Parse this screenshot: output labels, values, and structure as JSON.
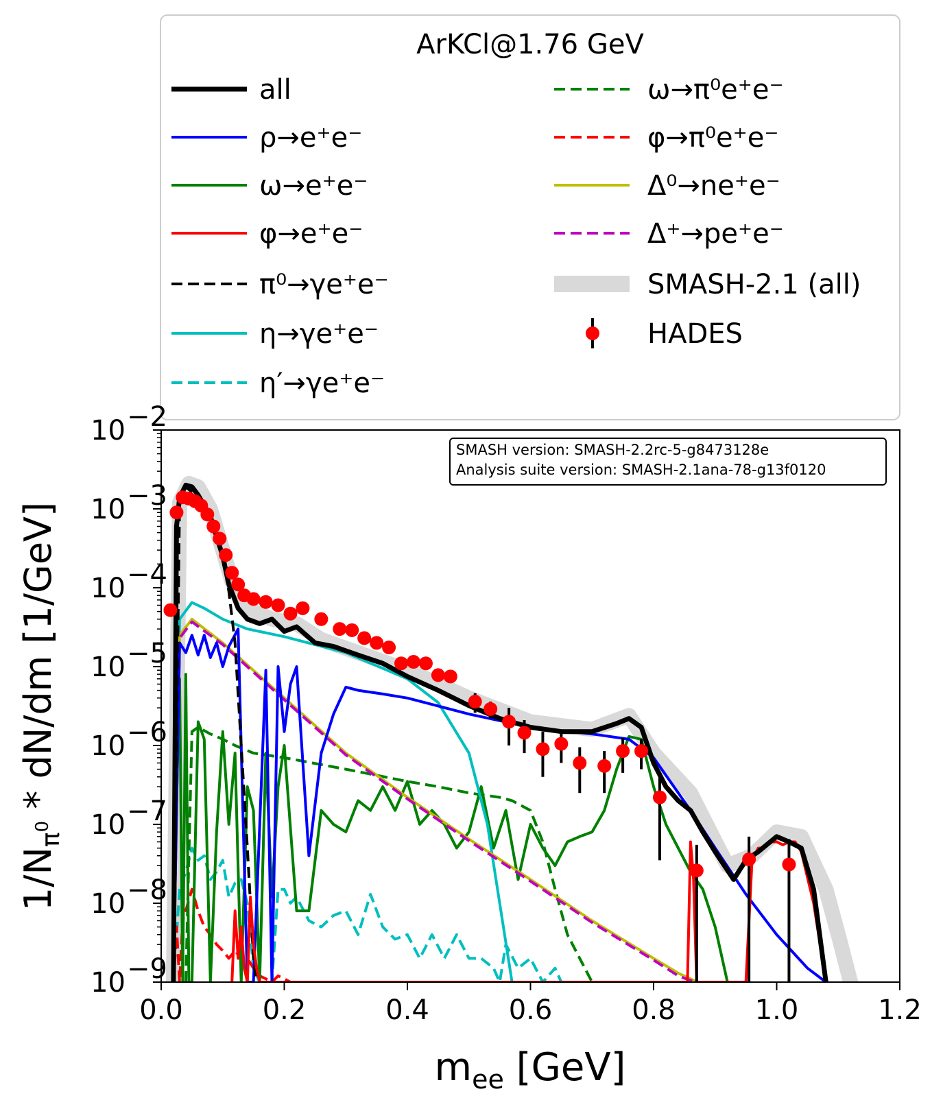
{
  "chart_data": {
    "type": "line",
    "title": "",
    "xlabel": "m_ee [GeV]",
    "ylabel": "1/N_π0 * dN/dm [1/GeV]",
    "xlim": [
      0.0,
      1.2
    ],
    "ylim": [
      1e-09,
      0.01
    ],
    "yscale": "log",
    "grid": false,
    "x_ticks": [
      "0.0",
      "0.2",
      "0.4",
      "0.6",
      "0.8",
      "1.0",
      "1.2"
    ],
    "y_ticks": [
      {
        "mant": "10",
        "exp": "−2"
      },
      {
        "mant": "10",
        "exp": "−3"
      },
      {
        "mant": "10",
        "exp": "−4"
      },
      {
        "mant": "10",
        "exp": "−5"
      },
      {
        "mant": "10",
        "exp": "−6"
      },
      {
        "mant": "10",
        "exp": "−7"
      },
      {
        "mant": "10",
        "exp": "−8"
      },
      {
        "mant": "10",
        "exp": "−9"
      }
    ],
    "legend": {
      "title": "ArKCl@1.76 GeV",
      "placement": "top"
    },
    "info_box": {
      "line1": "SMASH version: SMASH-2.2rc-5-g8473128e",
      "line2": "Analysis suite version: SMASH-2.1ana-78-g13f0120"
    },
    "series": [
      {
        "name": "SMASH-2.1 (all)",
        "color": "#d9d9d9",
        "style": "band",
        "x": [
          0.02,
          0.03,
          0.045,
          0.06,
          0.08,
          0.1,
          0.115,
          0.13,
          0.15,
          0.18,
          0.22,
          0.26,
          0.32,
          0.4,
          0.5,
          0.6,
          0.7,
          0.76,
          0.8,
          0.86,
          0.92,
          0.96,
          1.0,
          1.04,
          1.08,
          1.1,
          1.12
        ],
        "y": [
          1e-09,
          0.0012,
          0.0021,
          0.0019,
          0.001,
          0.0003,
          0.00012,
          7e-05,
          5e-05,
          4e-05,
          3.5e-05,
          2.2e-05,
          1.5e-05,
          9e-06,
          4e-06,
          2e-06,
          1.6e-06,
          2.4e-06,
          8e-07,
          2.5e-07,
          3e-08,
          4e-08,
          8e-08,
          7e-08,
          1.5e-08,
          4e-09,
          1e-09
        ]
      },
      {
        "name": "all",
        "color": "#000000",
        "style": "solid",
        "x": [
          0.02,
          0.025,
          0.03,
          0.04,
          0.05,
          0.06,
          0.08,
          0.1,
          0.11,
          0.125,
          0.14,
          0.16,
          0.18,
          0.2,
          0.22,
          0.25,
          0.28,
          0.32,
          0.36,
          0.4,
          0.45,
          0.5,
          0.55,
          0.6,
          0.65,
          0.7,
          0.74,
          0.76,
          0.78,
          0.8,
          0.82,
          0.84,
          0.86,
          0.88,
          0.9,
          0.93,
          0.95,
          0.97,
          1.0,
          1.02,
          1.04,
          1.06,
          1.08
        ],
        "y": [
          1e-09,
          0.0006,
          0.0014,
          0.002,
          0.0019,
          0.0015,
          0.0008,
          0.00025,
          0.00011,
          5.5e-05,
          4e-05,
          3.5e-05,
          4e-05,
          2.8e-05,
          3.2e-05,
          2e-05,
          1.8e-05,
          1.4e-05,
          1.1e-05,
          7.5e-06,
          5e-06,
          3.2e-06,
          2.2e-06,
          1.7e-06,
          1.5e-06,
          1.5e-06,
          1.9e-06,
          2.2e-06,
          1.7e-06,
          6e-07,
          3e-07,
          2e-07,
          1.5e-07,
          8e-08,
          4.5e-08,
          2e-08,
          3.5e-08,
          4.5e-08,
          7e-08,
          6e-08,
          5e-08,
          1.5e-08,
          1e-09
        ]
      },
      {
        "name": "ρ→e⁺e⁻",
        "color": "#0000ff",
        "style": "solid",
        "x": [
          0.02,
          0.03,
          0.04,
          0.05,
          0.06,
          0.07,
          0.08,
          0.09,
          0.1,
          0.11,
          0.125,
          0.14,
          0.15,
          0.17,
          0.18,
          0.19,
          0.2,
          0.21,
          0.22,
          0.24,
          0.26,
          0.28,
          0.3,
          0.32,
          0.36,
          0.4,
          0.5,
          0.6,
          0.7,
          0.76,
          0.8,
          0.86,
          0.9,
          0.95,
          1.0,
          1.05,
          1.08
        ],
        "y": [
          1e-09,
          2e-05,
          1.5e-05,
          2.5e-05,
          1.4e-05,
          2.5e-05,
          1.3e-05,
          2e-05,
          1e-05,
          1.8e-05,
          3e-05,
          1e-09,
          1e-09,
          9e-06,
          1e-09,
          1e-05,
          1.5e-06,
          6e-06,
          1e-05,
          4e-08,
          8e-07,
          2.5e-06,
          5.5e-06,
          5e-06,
          4.5e-06,
          4e-06,
          2.5e-06,
          1.7e-06,
          1.4e-06,
          1.2e-06,
          7e-07,
          1.5e-07,
          5e-08,
          1.3e-08,
          4e-09,
          1.5e-09,
          1e-09
        ]
      },
      {
        "name": "ω→e⁺e⁻",
        "color": "#008000",
        "style": "solid",
        "x": [
          0.02,
          0.025,
          0.03,
          0.035,
          0.04,
          0.045,
          0.05,
          0.06,
          0.07,
          0.08,
          0.09,
          0.1,
          0.11,
          0.12,
          0.13,
          0.14,
          0.15,
          0.16,
          0.17,
          0.18,
          0.19,
          0.2,
          0.22,
          0.24,
          0.26,
          0.28,
          0.3,
          0.32,
          0.34,
          0.36,
          0.38,
          0.4,
          0.42,
          0.44,
          0.46,
          0.48,
          0.5,
          0.52,
          0.54,
          0.56,
          0.58,
          0.6,
          0.62,
          0.64,
          0.66,
          0.68,
          0.7,
          0.72,
          0.74,
          0.76,
          0.78,
          0.8,
          0.82,
          0.84,
          0.86,
          0.88,
          0.9,
          0.92
        ],
        "y": [
          1e-09,
          8e-06,
          7e-06,
          1e-09,
          8e-06,
          1e-09,
          1e-09,
          2e-06,
          1.2e-06,
          1e-09,
          8e-08,
          1.5e-06,
          1e-07,
          8e-07,
          1e-09,
          3e-07,
          1.5e-07,
          1e-09,
          8e-07,
          1.2e-08,
          3e-07,
          1e-06,
          8e-09,
          8e-09,
          1.5e-07,
          1e-07,
          8e-08,
          2e-07,
          1.5e-07,
          3e-07,
          1.5e-07,
          3.5e-07,
          1e-07,
          1.5e-07,
          1e-07,
          5e-08,
          8e-08,
          3e-07,
          5e-08,
          1.5e-07,
          2e-08,
          1e-07,
          5e-08,
          3e-08,
          6e-08,
          7e-08,
          8e-08,
          1.5e-07,
          5e-07,
          1.3e-06,
          1.2e-06,
          3e-07,
          1e-07,
          5e-08,
          2.5e-08,
          1.5e-08,
          5e-09,
          1e-09
        ]
      },
      {
        "name": "φ→e⁺e⁻",
        "color": "#ff0000",
        "style": "solid",
        "x": [
          0.115,
          0.12,
          0.125,
          0.13,
          0.135,
          0.14,
          0.145,
          0.15,
          0.155,
          0.16,
          0.855,
          0.86,
          0.865,
          0.87,
          0.95,
          0.96,
          0.97,
          0.98,
          0.99,
          1.0,
          1.01,
          1.02,
          1.03,
          1.04,
          1.06,
          1.08
        ],
        "y": [
          1e-09,
          8e-09,
          2e-09,
          5e-09,
          1.5e-09,
          1e-09,
          1.2e-08,
          3e-09,
          1.5e-09,
          1e-09,
          1e-09,
          6e-08,
          2e-08,
          1e-09,
          1e-09,
          3.5e-08,
          5e-08,
          5e-08,
          6e-08,
          6e-08,
          5.5e-08,
          6e-08,
          6e-08,
          4.5e-08,
          1e-08,
          1e-09
        ]
      },
      {
        "name": "π⁰→γe⁺e⁻",
        "color": "#000000",
        "style": "dashed",
        "x": [
          0.02,
          0.03,
          0.04,
          0.06,
          0.08,
          0.1,
          0.11,
          0.12,
          0.13,
          0.14,
          0.15,
          0.155
        ],
        "y": [
          1e-09,
          0.0013,
          0.0019,
          0.0014,
          0.00075,
          0.00024,
          9e-05,
          2e-05,
          1e-06,
          5e-08,
          2e-09,
          1e-09
        ]
      },
      {
        "name": "η→γe⁺e⁻",
        "color": "#00bfbf",
        "style": "solid",
        "x": [
          0.02,
          0.03,
          0.05,
          0.07,
          0.1,
          0.14,
          0.2,
          0.3,
          0.4,
          0.45,
          0.5,
          0.53,
          0.55,
          0.57
        ],
        "y": [
          1e-09,
          4e-05,
          6.5e-05,
          5.5e-05,
          4e-05,
          3e-05,
          2.4e-05,
          1.5e-05,
          7e-06,
          3.5e-06,
          8e-07,
          1e-07,
          1e-08,
          1e-09
        ]
      },
      {
        "name": "η′→γe⁺e⁻",
        "color": "#00bfbf",
        "style": "dashed",
        "x": [
          0.02,
          0.03,
          0.04,
          0.05,
          0.06,
          0.07,
          0.08,
          0.09,
          0.1,
          0.11,
          0.12,
          0.13,
          0.14,
          0.15,
          0.16,
          0.17,
          0.18,
          0.19,
          0.2,
          0.21,
          0.22,
          0.24,
          0.26,
          0.28,
          0.3,
          0.32,
          0.34,
          0.36,
          0.38,
          0.4,
          0.42,
          0.44,
          0.46,
          0.48,
          0.5,
          0.52,
          0.54,
          0.55,
          0.56,
          0.58,
          0.6,
          0.62,
          0.64,
          0.65
        ],
        "y": [
          1e-09,
          1.5e-08,
          2.5e-08,
          5e-08,
          3.5e-08,
          4e-08,
          2e-08,
          2.5e-08,
          3.5e-08,
          1.2e-08,
          1.8e-08,
          2e-08,
          1e-08,
          1.5e-09,
          1e-09,
          1e-09,
          1e-09,
          1.5e-08,
          1.5e-08,
          1e-08,
          1.2e-08,
          6e-09,
          5e-09,
          7e-09,
          8e-09,
          4e-09,
          1.3e-08,
          5e-09,
          3.5e-09,
          4e-09,
          2e-09,
          4e-09,
          2e-09,
          4e-09,
          2e-09,
          2e-09,
          1.5e-09,
          1e-09,
          3e-09,
          1.5e-09,
          2e-09,
          1e-09,
          1.5e-09,
          1e-09
        ]
      },
      {
        "name": "ω→π⁰e⁺e⁻",
        "color": "#008000",
        "style": "dashed",
        "x": [
          0.04,
          0.05,
          0.06,
          0.08,
          0.1,
          0.12,
          0.15,
          0.2,
          0.3,
          0.4,
          0.45,
          0.5,
          0.55,
          0.57,
          0.6,
          0.62,
          0.64,
          0.66,
          0.68,
          0.7
        ],
        "y": [
          1e-09,
          1.5e-06,
          1.7e-06,
          1.4e-06,
          1.2e-06,
          1e-06,
          8e-07,
          7e-07,
          5e-07,
          3.5e-07,
          3e-07,
          2.5e-07,
          2.2e-07,
          2e-07,
          1.5e-07,
          6e-08,
          1.5e-08,
          4e-09,
          2e-09,
          1e-09
        ]
      },
      {
        "name": "φ→π⁰e⁺e⁻",
        "color": "#ff0000",
        "style": "dashed",
        "x": [
          0.02,
          0.025,
          0.03,
          0.035,
          0.04,
          0.05,
          0.06,
          0.07,
          0.08,
          0.09,
          0.1,
          0.11,
          0.12,
          0.13,
          0.14,
          0.15,
          0.16,
          0.17,
          0.18,
          0.19,
          0.2,
          0.21
        ],
        "y": [
          1e-09,
          5e-09,
          1e-09,
          6e-09,
          8e-09,
          1.5e-08,
          8e-09,
          5e-09,
          4e-09,
          3e-09,
          2.5e-09,
          2e-09,
          2.5e-09,
          2e-09,
          2e-09,
          1.5e-09,
          1.2e-09,
          1.1e-09,
          1e-09,
          1.2e-09,
          1.1e-09,
          1e-09
        ]
      },
      {
        "name": "Δ⁰→ne⁺e⁻",
        "color": "#bfbf00",
        "style": "solid",
        "x": [
          0.02,
          0.03,
          0.05,
          0.1,
          0.2,
          0.3,
          0.4,
          0.5,
          0.6,
          0.7,
          0.8,
          0.84,
          0.86,
          0.87
        ],
        "y": [
          1e-09,
          2.5e-05,
          4e-05,
          2e-05,
          4e-06,
          8e-07,
          2.2e-07,
          6.5e-08,
          2e-08,
          6e-09,
          2e-09,
          1.3e-09,
          1.1e-09,
          1e-09
        ]
      },
      {
        "name": "Δ⁺→pe⁺e⁻",
        "color": "#bf00bf",
        "style": "dashed",
        "x": [
          0.02,
          0.03,
          0.05,
          0.1,
          0.2,
          0.3,
          0.4,
          0.5,
          0.6,
          0.7,
          0.8,
          0.84,
          0.86,
          0.87
        ],
        "y": [
          1e-09,
          2.3e-05,
          3.7e-05,
          1.9e-05,
          3.8e-06,
          7.6e-07,
          2.1e-07,
          6.2e-08,
          1.9e-08,
          5.7e-09,
          1.9e-09,
          1.2e-09,
          1.05e-09,
          1e-09
        ]
      }
    ],
    "hades": {
      "name": "HADES",
      "color": "#ff0000",
      "points": [
        {
          "x": 0.015,
          "y": 5.2e-05
        },
        {
          "x": 0.025,
          "y": 0.0009
        },
        {
          "x": 0.035,
          "y": 0.0014
        },
        {
          "x": 0.045,
          "y": 0.00135
        },
        {
          "x": 0.055,
          "y": 0.00125
        },
        {
          "x": 0.065,
          "y": 0.0011
        },
        {
          "x": 0.075,
          "y": 0.00085
        },
        {
          "x": 0.085,
          "y": 0.0006
        },
        {
          "x": 0.095,
          "y": 0.00042
        },
        {
          "x": 0.105,
          "y": 0.00026
        },
        {
          "x": 0.115,
          "y": 0.000155
        },
        {
          "x": 0.125,
          "y": 0.00011
        },
        {
          "x": 0.135,
          "y": 8e-05
        },
        {
          "x": 0.15,
          "y": 7.2e-05
        },
        {
          "x": 0.17,
          "y": 6.6e-05
        },
        {
          "x": 0.19,
          "y": 6e-05
        },
        {
          "x": 0.21,
          "y": 4.7e-05
        },
        {
          "x": 0.23,
          "y": 5.5e-05
        },
        {
          "x": 0.26,
          "y": 4e-05
        },
        {
          "x": 0.29,
          "y": 3e-05
        },
        {
          "x": 0.31,
          "y": 2.9e-05
        },
        {
          "x": 0.33,
          "y": 2.3e-05
        },
        {
          "x": 0.35,
          "y": 2e-05
        },
        {
          "x": 0.37,
          "y": 1.75e-05
        },
        {
          "x": 0.39,
          "y": 1.1e-05
        },
        {
          "x": 0.41,
          "y": 1.15e-05
        },
        {
          "x": 0.43,
          "y": 1.1e-05
        },
        {
          "x": 0.45,
          "y": 7.8e-06,
          "err": [
            7e-06,
            8.6e-06
          ]
        },
        {
          "x": 0.47,
          "y": 7.5e-06,
          "err": [
            6.6e-06,
            8.4e-06
          ]
        },
        {
          "x": 0.51,
          "y": 3.6e-06,
          "err": [
            2.6e-06,
            4.6e-06
          ]
        },
        {
          "x": 0.535,
          "y": 2.9e-06,
          "err": [
            2.2e-06,
            3.6e-06
          ]
        },
        {
          "x": 0.565,
          "y": 2e-06,
          "err": [
            1e-06,
            3e-06
          ]
        },
        {
          "x": 0.59,
          "y": 1.45e-06,
          "err": [
            8e-07,
            2.1e-06
          ]
        },
        {
          "x": 0.62,
          "y": 9e-07,
          "err": [
            4e-07,
            1.5e-06
          ]
        },
        {
          "x": 0.65,
          "y": 1.05e-06,
          "err": [
            6e-07,
            1.5e-06
          ]
        },
        {
          "x": 0.68,
          "y": 6e-07,
          "err": [
            2.5e-07,
            9.5e-07
          ]
        },
        {
          "x": 0.72,
          "y": 5.5e-07,
          "err": [
            2.5e-07,
            8.5e-07
          ]
        },
        {
          "x": 0.75,
          "y": 8.5e-07,
          "err": [
            4.5e-07,
            1.25e-06
          ]
        },
        {
          "x": 0.78,
          "y": 8.5e-07,
          "err": [
            5e-07,
            1.2e-06
          ]
        },
        {
          "x": 0.81,
          "y": 2.2e-07,
          "err": [
            3.5e-08,
            4e-07
          ]
        },
        {
          "x": 0.87,
          "y": 2.6e-08,
          "err": [
            1e-09,
            5.5e-08
          ]
        },
        {
          "x": 0.955,
          "y": 3.6e-08,
          "err": [
            1e-09,
            7e-08
          ]
        },
        {
          "x": 1.02,
          "y": 3.1e-08,
          "err": [
            1e-09,
            6.5e-08
          ]
        }
      ]
    }
  }
}
